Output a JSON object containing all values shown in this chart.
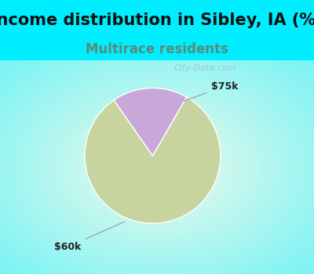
{
  "title": "Income distribution in Sibley, IA (%)",
  "subtitle": "Multirace residents",
  "title_fontsize": 15,
  "subtitle_fontsize": 12,
  "title_color": "#111111",
  "subtitle_color": "#5a8a7a",
  "background_color_top": "#00eeff",
  "background_color_chart": "#e8f5ee",
  "slices": [
    {
      "label": "$60k",
      "value": 82,
      "color": "#c8d4a0"
    },
    {
      "label": "$75k",
      "value": 18,
      "color": "#c8a8d8"
    }
  ],
  "watermark": "City-Data.com",
  "figsize": [
    4.0,
    3.5
  ],
  "dpi": 100
}
